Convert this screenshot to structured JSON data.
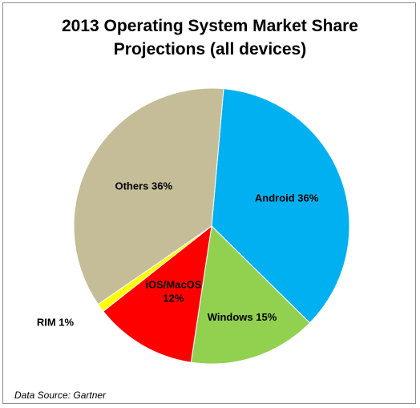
{
  "chart_data": {
    "type": "pie",
    "title_lines": [
      "2013 Operating System Market Share",
      "Projections (all devices)"
    ],
    "slices": [
      {
        "name": "Android",
        "value": 36,
        "color": "#00b0f0",
        "label_lines": [
          "Android 36%"
        ]
      },
      {
        "name": "Windows",
        "value": 15,
        "color": "#92d050",
        "label_lines": [
          "Windows 15%"
        ]
      },
      {
        "name": "iOS/MacOS",
        "value": 12,
        "color": "#ff0000",
        "label_lines": [
          "iOS/MacOS",
          "12%"
        ]
      },
      {
        "name": "RIM",
        "value": 1,
        "color": "#ffff00",
        "label_lines": [
          "RIM 1%"
        ]
      },
      {
        "name": "Others",
        "value": 36,
        "color": "#c4bd97",
        "label_lines": [
          "Others 36%"
        ]
      }
    ],
    "source": "Data Source: Gartner"
  }
}
